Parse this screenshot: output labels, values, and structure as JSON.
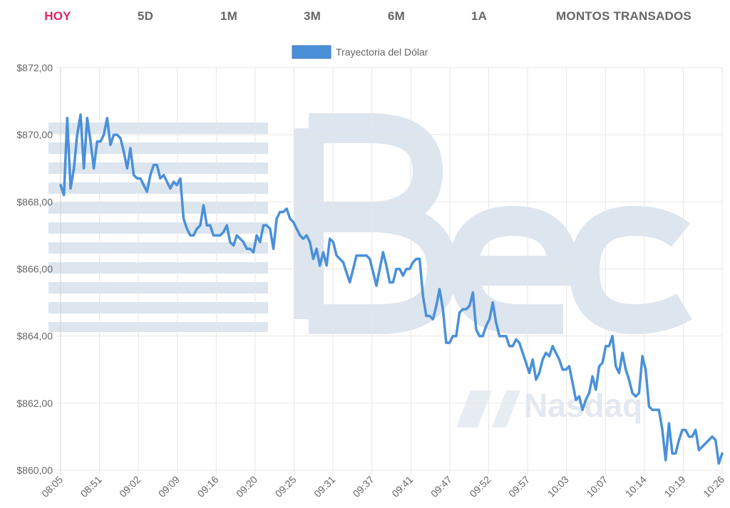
{
  "tabs": [
    {
      "label": "HOY",
      "active": true
    },
    {
      "label": "5D",
      "active": false
    },
    {
      "label": "1M",
      "active": false
    },
    {
      "label": "3M",
      "active": false
    },
    {
      "label": "6M",
      "active": false
    },
    {
      "label": "1A",
      "active": false
    },
    {
      "label": "MONTOS TRANSADOS",
      "active": false
    }
  ],
  "colors": {
    "active_tab": "#e0245e",
    "tab": "#666666",
    "line": "#4a90d9",
    "grid": "#e6e6e6",
    "watermark": "#dde5ef"
  },
  "watermark": {
    "text": "Bec",
    "subtext": "Nasdaq"
  },
  "chart_data": {
    "type": "line",
    "legend_position": "top",
    "grid": true,
    "ylim": [
      860,
      872
    ],
    "y_ticks": [
      "$860,00",
      "$862,00",
      "$864,00",
      "$866,00",
      "$868,00",
      "$870,00",
      "$872,00"
    ],
    "x_tick_labels": [
      "08:05",
      "08:51",
      "09:02",
      "09:09",
      "09:16",
      "09:20",
      "09:25",
      "09:31",
      "09:37",
      "09:41",
      "09:47",
      "09:52",
      "09:57",
      "10:03",
      "10:07",
      "10:14",
      "10:19",
      "10:26"
    ],
    "series": [
      {
        "name": "Trayectoria del Dólar",
        "values": [
          868.5,
          868.2,
          870.5,
          868.4,
          869.0,
          870.0,
          870.6,
          869.0,
          870.5,
          869.8,
          869.0,
          869.8,
          869.8,
          870.0,
          870.5,
          869.7,
          870.0,
          870.0,
          869.9,
          869.5,
          869.0,
          869.6,
          868.8,
          868.7,
          868.7,
          868.5,
          868.3,
          868.8,
          869.1,
          869.1,
          868.7,
          868.8,
          868.6,
          868.4,
          868.6,
          868.5,
          868.7,
          867.5,
          867.2,
          867.0,
          867.0,
          867.2,
          867.3,
          867.9,
          867.3,
          867.3,
          867.0,
          867.0,
          867.0,
          867.1,
          867.3,
          866.8,
          866.7,
          867.0,
          866.9,
          866.8,
          866.6,
          866.6,
          866.5,
          867.0,
          866.8,
          867.3,
          867.3,
          867.2,
          866.6,
          867.5,
          867.7,
          867.7,
          867.8,
          867.5,
          867.4,
          867.2,
          867.0,
          866.9,
          867.0,
          866.8,
          866.3,
          866.6,
          866.1,
          866.5,
          866.1,
          866.9,
          866.8,
          866.4,
          866.3,
          866.2,
          865.9,
          865.6,
          866.0,
          866.4,
          866.4,
          866.4,
          866.4,
          866.3,
          865.9,
          865.5,
          866.0,
          866.5,
          866.1,
          865.6,
          865.6,
          866.0,
          866.0,
          865.8,
          866.0,
          866.0,
          866.2,
          866.3,
          866.3,
          865.2,
          864.6,
          864.6,
          864.5,
          864.9,
          865.4,
          864.8,
          863.8,
          863.8,
          864.0,
          864.0,
          864.7,
          864.8,
          864.8,
          864.9,
          865.3,
          864.2,
          864.0,
          864.0,
          864.3,
          864.5,
          865.0,
          864.4,
          864.0,
          864.0,
          864.0,
          863.7,
          863.7,
          863.9,
          863.8,
          863.5,
          863.2,
          862.9,
          863.3,
          862.7,
          862.9,
          863.3,
          863.5,
          863.4,
          863.7,
          863.5,
          863.3,
          863.0,
          863.0,
          863.1,
          862.6,
          862.1,
          862.2,
          861.8,
          862.1,
          862.3,
          862.8,
          862.4,
          863.1,
          863.2,
          863.7,
          863.7,
          864.0,
          863.1,
          862.9,
          863.5,
          863.0,
          862.7,
          862.3,
          862.2,
          862.3,
          863.4,
          863.0,
          861.9,
          861.8,
          861.8,
          861.8,
          861.2,
          860.3,
          861.4,
          860.5,
          860.5,
          860.9,
          861.2,
          861.2,
          861.0,
          861.0,
          861.2,
          860.6,
          860.7,
          860.8,
          860.9,
          861.0,
          860.9,
          860.2,
          860.5
        ]
      }
    ]
  }
}
